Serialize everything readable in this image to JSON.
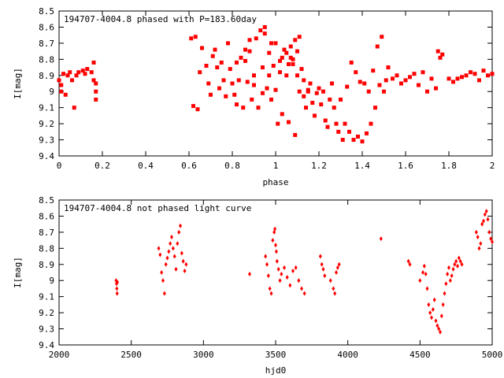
{
  "chart_data": [
    {
      "type": "scatter",
      "title": "194707-4004.8 phased with P=183.60day",
      "xlabel": "phase",
      "ylabel": "I[mag]",
      "xlim": [
        0,
        2
      ],
      "ylim": [
        8.5,
        9.4
      ],
      "y_inverted": true,
      "x_ticks": [
        "0",
        "0.2",
        "0.4",
        "0.6",
        "0.8",
        "1",
        "1.2",
        "1.4",
        "1.6",
        "1.8",
        "2"
      ],
      "y_ticks": [
        "8.5",
        "8.6",
        "8.7",
        "8.8",
        "8.9",
        "9",
        "9.1",
        "9.2",
        "9.3",
        "9.4"
      ],
      "marker_color": "#ff0000",
      "grid": false,
      "points": [
        [
          0.0,
          8.93
        ],
        [
          0.01,
          8.96
        ],
        [
          0.01,
          9.0
        ],
        [
          0.02,
          8.89
        ],
        [
          0.03,
          9.02
        ],
        [
          0.04,
          8.9
        ],
        [
          0.05,
          8.88
        ],
        [
          0.07,
          9.1
        ],
        [
          0.06,
          8.93
        ],
        [
          0.08,
          8.9
        ],
        [
          0.09,
          8.88
        ],
        [
          0.11,
          8.87
        ],
        [
          0.12,
          8.89
        ],
        [
          0.13,
          8.86
        ],
        [
          0.15,
          8.88
        ],
        [
          0.16,
          8.82
        ],
        [
          0.16,
          8.93
        ],
        [
          0.17,
          8.95
        ],
        [
          0.17,
          9.05
        ],
        [
          0.17,
          9.0
        ],
        [
          0.61,
          8.67
        ],
        [
          0.62,
          9.09
        ],
        [
          0.63,
          8.66
        ],
        [
          0.64,
          9.11
        ],
        [
          0.65,
          8.88
        ],
        [
          0.66,
          8.73
        ],
        [
          0.68,
          8.84
        ],
        [
          0.69,
          8.95
        ],
        [
          0.7,
          9.02
        ],
        [
          0.71,
          8.78
        ],
        [
          0.72,
          8.74
        ],
        [
          0.73,
          8.85
        ],
        [
          0.74,
          8.98
        ],
        [
          0.75,
          8.82
        ],
        [
          0.76,
          8.93
        ],
        [
          0.77,
          9.03
        ],
        [
          0.78,
          8.7
        ],
        [
          0.79,
          8.86
        ],
        [
          0.8,
          8.95
        ],
        [
          0.81,
          9.02
        ],
        [
          0.82,
          9.08
        ],
        [
          0.83,
          8.93
        ],
        [
          0.84,
          8.79
        ],
        [
          0.85,
          9.1
        ],
        [
          0.86,
          8.81
        ],
        [
          0.87,
          8.94
        ],
        [
          0.88,
          8.75
        ],
        [
          0.89,
          9.05
        ],
        [
          0.9,
          8.96
        ],
        [
          0.91,
          8.67
        ],
        [
          0.92,
          9.1
        ],
        [
          0.93,
          8.62
        ],
        [
          0.94,
          9.01
        ],
        [
          0.95,
          8.6
        ],
        [
          0.96,
          8.98
        ],
        [
          0.97,
          8.76
        ],
        [
          0.98,
          9.05
        ],
        [
          0.99,
          8.84
        ],
        [
          1.0,
          8.7
        ],
        [
          1.01,
          9.2
        ],
        [
          1.02,
          8.88
        ],
        [
          1.03,
          9.14
        ],
        [
          1.04,
          8.74
        ],
        [
          1.05,
          8.9
        ],
        [
          1.06,
          9.19
        ],
        [
          1.07,
          8.79
        ],
        [
          1.08,
          8.83
        ],
        [
          1.09,
          9.27
        ],
        [
          1.1,
          8.75
        ],
        [
          1.11,
          9.0
        ],
        [
          1.12,
          8.86
        ],
        [
          1.13,
          9.03
        ],
        [
          1.14,
          9.1
        ],
        [
          1.15,
          9.0
        ],
        [
          1.16,
          8.95
        ],
        [
          1.17,
          9.07
        ],
        [
          1.18,
          9.15
        ],
        [
          1.19,
          9.01
        ],
        [
          1.2,
          8.98
        ],
        [
          1.21,
          9.08
        ],
        [
          1.22,
          9.0
        ],
        [
          1.23,
          9.18
        ],
        [
          1.24,
          9.22
        ],
        [
          1.25,
          9.05
        ],
        [
          1.26,
          8.95
        ],
        [
          1.27,
          9.1
        ],
        [
          1.28,
          9.2
        ],
        [
          1.29,
          9.25
        ],
        [
          1.3,
          9.05
        ],
        [
          1.31,
          9.3
        ],
        [
          1.32,
          9.2
        ],
        [
          1.33,
          8.97
        ],
        [
          1.34,
          9.25
        ],
        [
          1.35,
          8.82
        ],
        [
          1.36,
          9.3
        ],
        [
          1.37,
          8.88
        ],
        [
          1.38,
          9.28
        ],
        [
          1.39,
          8.94
        ],
        [
          1.4,
          9.31
        ],
        [
          1.41,
          8.95
        ],
        [
          1.42,
          9.26
        ],
        [
          1.43,
          9.0
        ],
        [
          1.44,
          9.2
        ],
        [
          1.45,
          8.87
        ],
        [
          1.46,
          9.1
        ],
        [
          1.47,
          8.72
        ],
        [
          1.48,
          8.96
        ],
        [
          1.49,
          8.66
        ],
        [
          1.5,
          9.0
        ],
        [
          1.51,
          8.93
        ],
        [
          1.52,
          8.85
        ],
        [
          1.54,
          8.92
        ],
        [
          1.56,
          8.9
        ],
        [
          1.58,
          8.95
        ],
        [
          1.6,
          8.93
        ],
        [
          1.62,
          8.91
        ],
        [
          1.64,
          8.89
        ],
        [
          1.66,
          8.96
        ],
        [
          1.68,
          8.88
        ],
        [
          1.7,
          9.0
        ],
        [
          1.72,
          8.92
        ],
        [
          1.74,
          8.98
        ],
        [
          1.75,
          8.75
        ],
        [
          1.76,
          8.79
        ],
        [
          1.77,
          8.77
        ],
        [
          1.8,
          8.92
        ],
        [
          1.82,
          8.94
        ],
        [
          1.84,
          8.92
        ],
        [
          1.86,
          8.91
        ],
        [
          1.88,
          8.9
        ],
        [
          1.9,
          8.88
        ],
        [
          1.92,
          8.89
        ],
        [
          1.94,
          8.93
        ],
        [
          1.96,
          8.87
        ],
        [
          1.98,
          8.9
        ],
        [
          2.0,
          8.89
        ],
        [
          0.9,
          8.9
        ],
        [
          0.94,
          8.85
        ],
        [
          0.97,
          8.9
        ],
        [
          1.0,
          8.99
        ],
        [
          1.02,
          8.81
        ],
        [
          1.05,
          8.76
        ],
        [
          1.07,
          8.72
        ],
        [
          1.09,
          8.68
        ],
        [
          1.11,
          8.66
        ],
        [
          0.82,
          8.82
        ],
        [
          0.86,
          8.74
        ],
        [
          0.88,
          8.68
        ],
        [
          0.95,
          8.64
        ],
        [
          0.98,
          8.7
        ],
        [
          1.03,
          8.79
        ],
        [
          1.06,
          8.83
        ],
        [
          1.08,
          8.8
        ],
        [
          1.1,
          8.9
        ],
        [
          1.13,
          8.93
        ],
        [
          1.15,
          8.99
        ]
      ]
    },
    {
      "type": "scatter",
      "title": "194707-4004.8 not phased light curve",
      "xlabel": "hjd0",
      "ylabel": "I[mag]",
      "xlim": [
        2000,
        5000
      ],
      "ylim": [
        8.5,
        9.4
      ],
      "y_inverted": true,
      "x_ticks": [
        "2000",
        "2500",
        "3000",
        "3500",
        "4000",
        "4500",
        "5000"
      ],
      "y_ticks": [
        "8.5",
        "8.6",
        "8.7",
        "8.8",
        "8.9",
        "9",
        "9.1",
        "9.2",
        "9.3",
        "9.4"
      ],
      "marker_color": "#ff0000",
      "grid": false,
      "points": [
        [
          2395,
          9.0
        ],
        [
          2398,
          9.02
        ],
        [
          2400,
          9.05
        ],
        [
          2402,
          9.08
        ],
        [
          2404,
          9.01
        ],
        [
          2690,
          8.8
        ],
        [
          2700,
          8.84
        ],
        [
          2710,
          8.95
        ],
        [
          2720,
          9.0
        ],
        [
          2730,
          9.08
        ],
        [
          2740,
          8.9
        ],
        [
          2750,
          8.86
        ],
        [
          2760,
          8.82
        ],
        [
          2770,
          8.77
        ],
        [
          2780,
          8.73
        ],
        [
          2790,
          8.8
        ],
        [
          2800,
          8.85
        ],
        [
          2810,
          8.93
        ],
        [
          2820,
          8.77
        ],
        [
          2830,
          8.7
        ],
        [
          2840,
          8.66
        ],
        [
          2850,
          8.83
        ],
        [
          2860,
          8.88
        ],
        [
          2870,
          8.94
        ],
        [
          2880,
          8.9
        ],
        [
          3320,
          8.96
        ],
        [
          3430,
          8.85
        ],
        [
          3440,
          8.9
        ],
        [
          3450,
          8.97
        ],
        [
          3460,
          9.05
        ],
        [
          3470,
          9.08
        ],
        [
          3480,
          8.75
        ],
        [
          3490,
          8.7
        ],
        [
          3495,
          8.68
        ],
        [
          3500,
          8.78
        ],
        [
          3505,
          8.82
        ],
        [
          3510,
          8.88
        ],
        [
          3520,
          8.93
        ],
        [
          3530,
          9.0
        ],
        [
          3540,
          8.96
        ],
        [
          3560,
          8.92
        ],
        [
          3580,
          8.98
        ],
        [
          3600,
          9.03
        ],
        [
          3620,
          8.94
        ],
        [
          3640,
          8.92
        ],
        [
          3660,
          9.0
        ],
        [
          3680,
          9.05
        ],
        [
          3700,
          9.08
        ],
        [
          3810,
          8.85
        ],
        [
          3820,
          8.9
        ],
        [
          3830,
          8.93
        ],
        [
          3840,
          8.97
        ],
        [
          3880,
          9.0
        ],
        [
          3900,
          9.05
        ],
        [
          3910,
          9.08
        ],
        [
          3920,
          8.95
        ],
        [
          3930,
          8.92
        ],
        [
          3940,
          8.9
        ],
        [
          4230,
          8.74
        ],
        [
          4420,
          8.88
        ],
        [
          4430,
          8.9
        ],
        [
          4500,
          9.0
        ],
        [
          4520,
          8.95
        ],
        [
          4530,
          8.91
        ],
        [
          4540,
          8.96
        ],
        [
          4550,
          9.05
        ],
        [
          4560,
          9.15
        ],
        [
          4570,
          9.2
        ],
        [
          4580,
          9.23
        ],
        [
          4590,
          9.18
        ],
        [
          4600,
          9.12
        ],
        [
          4610,
          9.25
        ],
        [
          4620,
          9.28
        ],
        [
          4630,
          9.3
        ],
        [
          4640,
          9.32
        ],
        [
          4650,
          9.22
        ],
        [
          4660,
          9.15
        ],
        [
          4670,
          9.08
        ],
        [
          4680,
          9.02
        ],
        [
          4690,
          8.96
        ],
        [
          4700,
          8.92
        ],
        [
          4710,
          9.0
        ],
        [
          4720,
          8.97
        ],
        [
          4730,
          8.93
        ],
        [
          4740,
          8.9
        ],
        [
          4750,
          8.88
        ],
        [
          4760,
          8.91
        ],
        [
          4770,
          8.86
        ],
        [
          4780,
          8.88
        ],
        [
          4790,
          8.9
        ],
        [
          4890,
          8.7
        ],
        [
          4900,
          8.73
        ],
        [
          4910,
          8.8
        ],
        [
          4920,
          8.77
        ],
        [
          4930,
          8.65
        ],
        [
          4940,
          8.63
        ],
        [
          4950,
          8.59
        ],
        [
          4960,
          8.57
        ],
        [
          4970,
          8.62
        ],
        [
          4980,
          8.7
        ],
        [
          4990,
          8.74
        ],
        [
          5000,
          8.76
        ]
      ]
    }
  ]
}
